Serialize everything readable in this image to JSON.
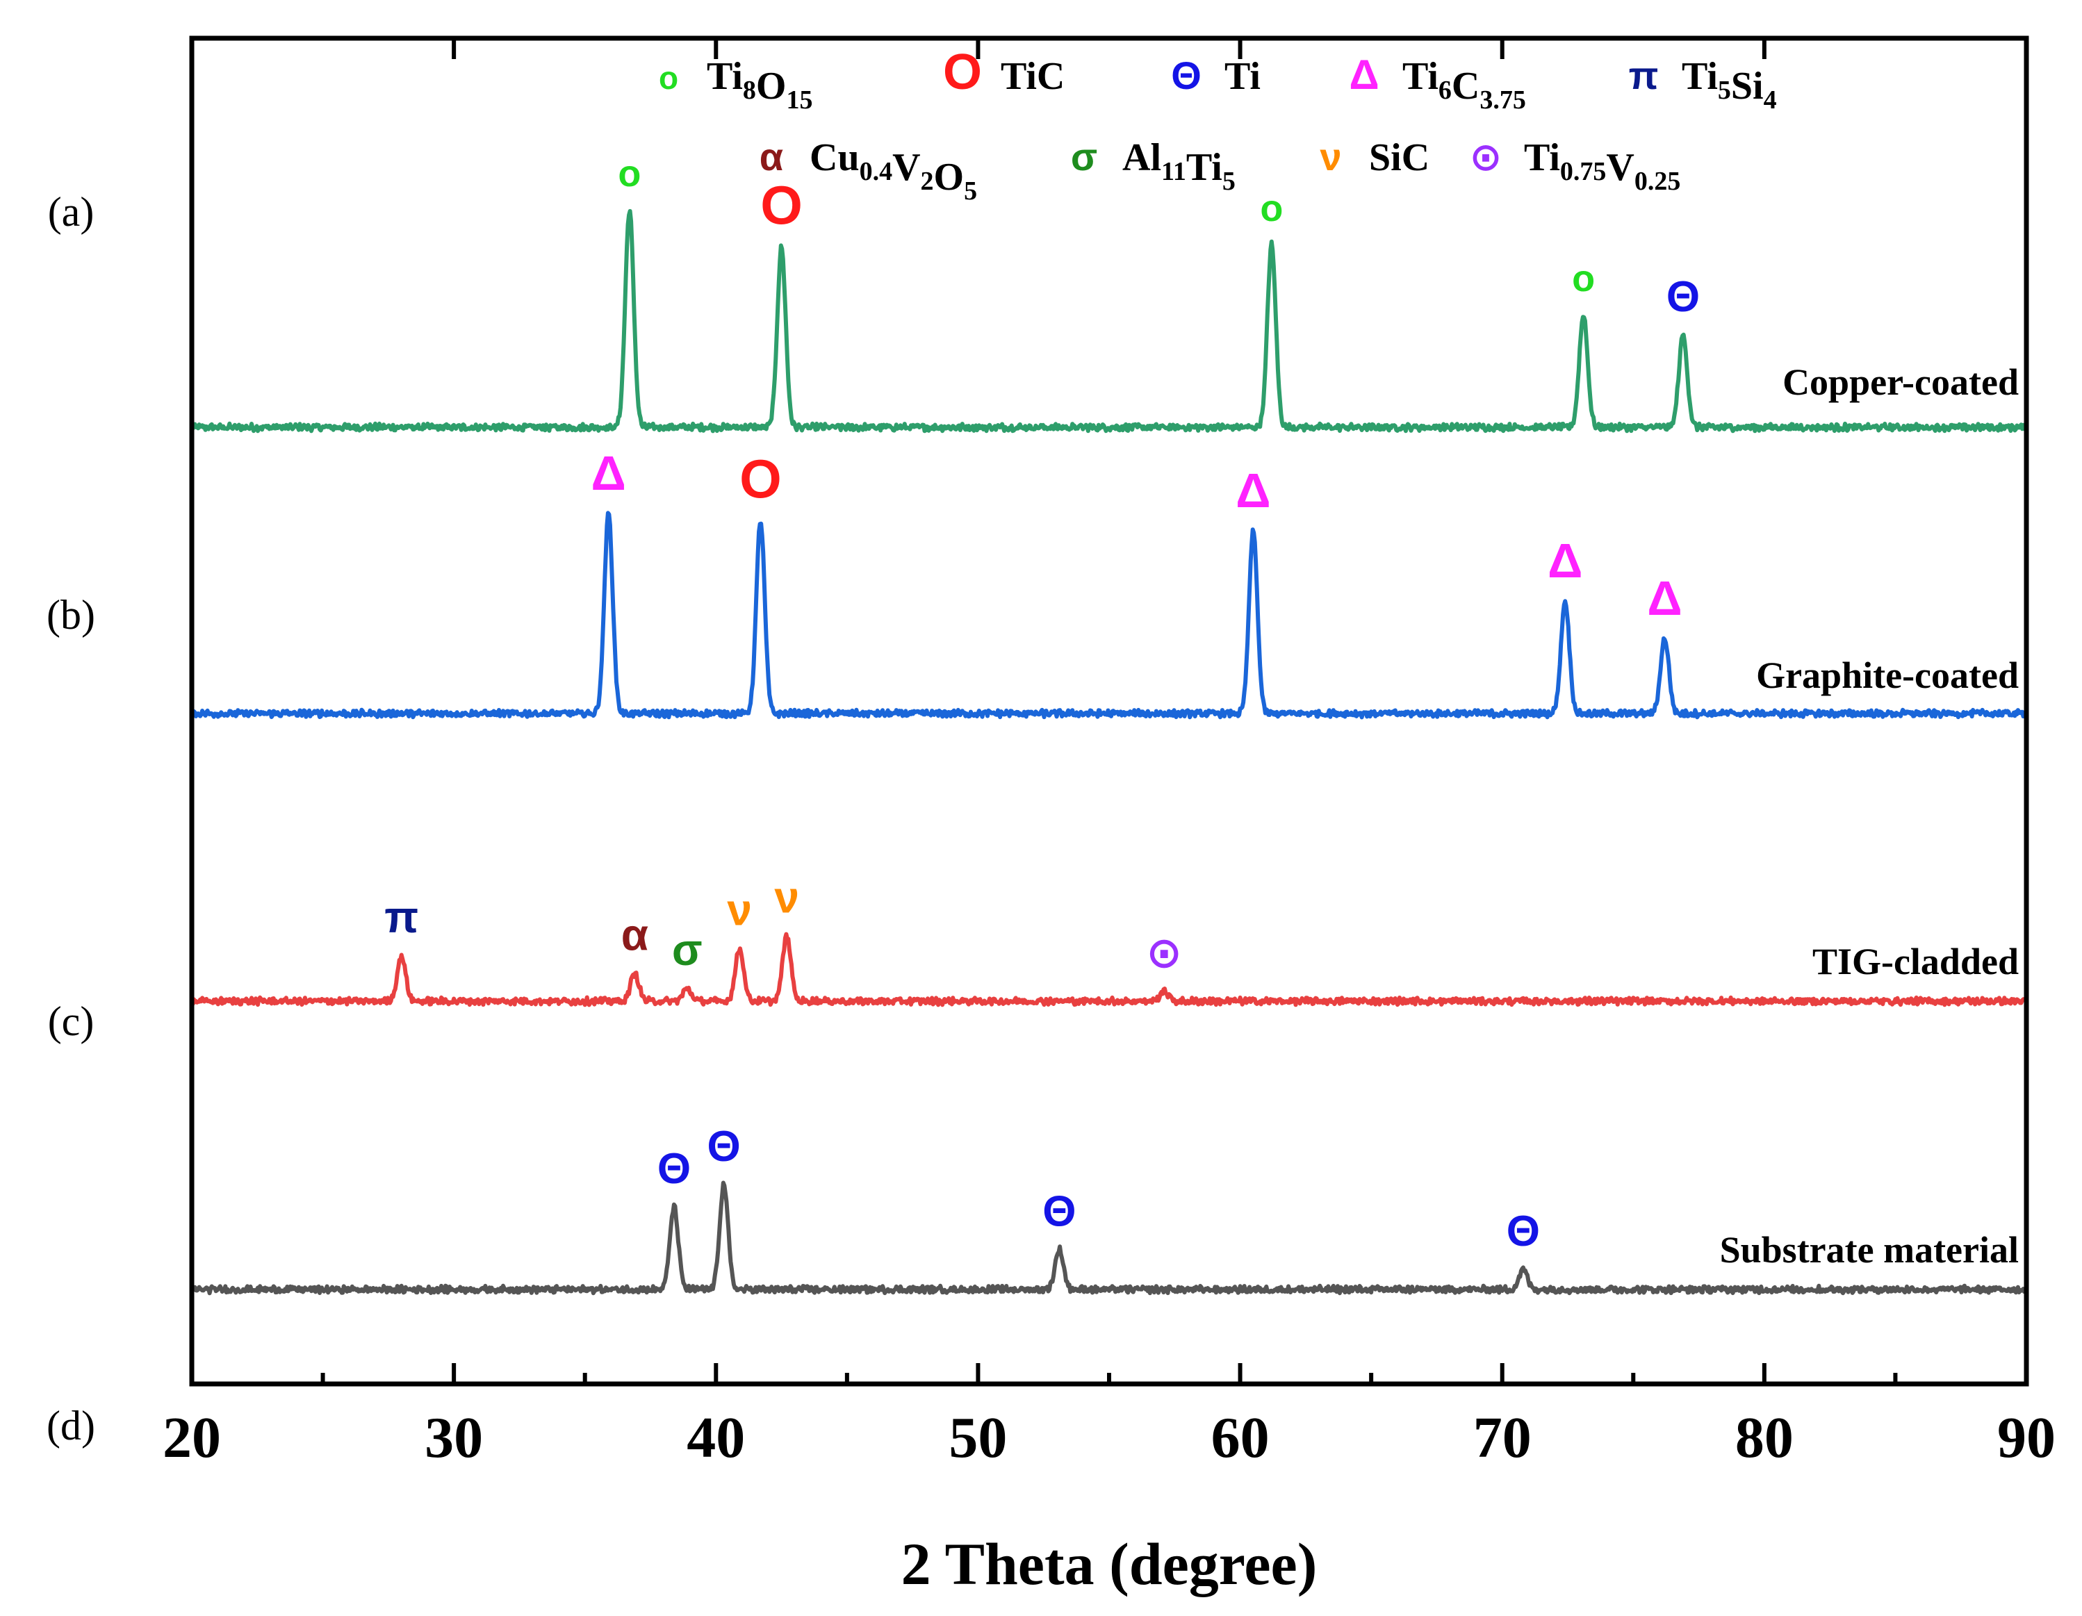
{
  "chart_data": {
    "type": "line",
    "title": "",
    "xlabel": "2 Theta (degree)",
    "ylabel": "",
    "xlim": [
      20,
      90
    ],
    "xticks": [
      "20",
      "30",
      "40",
      "50",
      "60",
      "70",
      "80",
      "90"
    ],
    "panel_labels": [
      "(a)",
      "(b)",
      "(c)",
      "(d)"
    ],
    "legend": [
      {
        "symbol": "o",
        "phase": "Ti8O15",
        "base": "Ti",
        "sub1": "8",
        "mid": "O",
        "sub2": "15",
        "color": "#22dd22"
      },
      {
        "symbol": "O",
        "phase": "TiC",
        "base": "TiC",
        "sub1": "",
        "mid": "",
        "sub2": "",
        "color": "#ff1a1a"
      },
      {
        "symbol": "Θ",
        "phase": "Ti",
        "base": "Ti",
        "sub1": "",
        "mid": "",
        "sub2": "",
        "color": "#1414e6"
      },
      {
        "symbol": "Δ",
        "phase": "Ti6C3.75",
        "base": "Ti",
        "sub1": "6",
        "mid": "C",
        "sub2": "3.75",
        "color": "#ff22ff"
      },
      {
        "symbol": "π",
        "phase": "Ti5Si4",
        "base": "Ti",
        "sub1": "5",
        "mid": "Si",
        "sub2": "4",
        "color": "#0a1a8c"
      },
      {
        "symbol": "α",
        "phase": "Cu0.4V2O5",
        "base": "Cu",
        "sub1": "0.4",
        "mid": "V",
        "sub2": "2",
        "tail": "O",
        "sub3": "5",
        "color": "#8b1a1a"
      },
      {
        "symbol": "σ",
        "phase": "Al11Ti5",
        "base": "Al",
        "sub1": "11",
        "mid": "Ti",
        "sub2": "5",
        "color": "#1e8c1e"
      },
      {
        "symbol": "ν",
        "phase": "SiC",
        "base": "SiC",
        "sub1": "",
        "mid": "",
        "sub2": "",
        "color": "#ff8c00"
      },
      {
        "symbol": "⊙",
        "phase": "Ti0.75V0.25",
        "base": "Ti",
        "sub1": "0.75",
        "mid": "V",
        "sub2": "0.25",
        "color": "#9b30ff"
      }
    ],
    "series": [
      {
        "name": "Copper-coated",
        "color": "#2e9e6b",
        "peaks": [
          {
            "x": 36.7,
            "height": 0.87,
            "marker": "o",
            "marker_color": "#22dd22"
          },
          {
            "x": 42.5,
            "height": 0.72,
            "marker": "O",
            "marker_color": "#ff1a1a"
          },
          {
            "x": 61.2,
            "height": 0.73,
            "marker": "o",
            "marker_color": "#22dd22"
          },
          {
            "x": 73.1,
            "height": 0.45,
            "marker": "o",
            "marker_color": "#22dd22"
          },
          {
            "x": 76.9,
            "height": 0.37,
            "marker": "Θ",
            "marker_color": "#1414e6"
          }
        ]
      },
      {
        "name": "Graphite-coated",
        "color": "#1a66d9",
        "peaks": [
          {
            "x": 35.9,
            "height": 0.8,
            "marker": "Δ",
            "marker_color": "#ff22ff"
          },
          {
            "x": 41.7,
            "height": 0.77,
            "marker": "O",
            "marker_color": "#ff1a1a"
          },
          {
            "x": 60.5,
            "height": 0.73,
            "marker": "Δ",
            "marker_color": "#ff22ff"
          },
          {
            "x": 72.4,
            "height": 0.45,
            "marker": "Δ",
            "marker_color": "#ff22ff"
          },
          {
            "x": 76.2,
            "height": 0.3,
            "marker": "Δ",
            "marker_color": "#ff22ff"
          }
        ]
      },
      {
        "name": "TIG-cladded",
        "color": "#e84040",
        "peaks": [
          {
            "x": 28.0,
            "height": 0.18,
            "marker": "π",
            "marker_color": "#0a1a8c"
          },
          {
            "x": 36.9,
            "height": 0.11,
            "marker": "α",
            "marker_color": "#8b1a1a"
          },
          {
            "x": 38.9,
            "height": 0.05,
            "marker": "σ",
            "marker_color": "#1e8c1e"
          },
          {
            "x": 40.9,
            "height": 0.21,
            "marker": "ν",
            "marker_color": "#ff8c00"
          },
          {
            "x": 42.7,
            "height": 0.26,
            "marker": "ν",
            "marker_color": "#ff8c00"
          },
          {
            "x": 57.1,
            "height": 0.04,
            "marker": "⊙",
            "marker_color": "#9b30ff"
          }
        ]
      },
      {
        "name": "Substrate material",
        "color": "#555555",
        "peaks": [
          {
            "x": 38.4,
            "height": 0.33,
            "marker": "Θ",
            "marker_color": "#1414e6"
          },
          {
            "x": 40.3,
            "height": 0.42,
            "marker": "Θ",
            "marker_color": "#1414e6"
          },
          {
            "x": 53.1,
            "height": 0.16,
            "marker": "Θ",
            "marker_color": "#1414e6"
          },
          {
            "x": 70.8,
            "height": 0.08,
            "marker": "Θ",
            "marker_color": "#1414e6"
          }
        ]
      }
    ]
  }
}
